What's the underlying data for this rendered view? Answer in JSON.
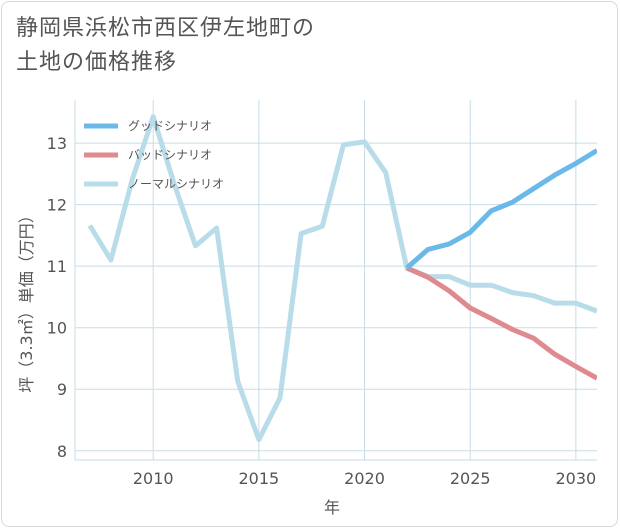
{
  "title": {
    "line1": "静岡県浜松市西区伊左地町の",
    "line2": "土地の価格推移"
  },
  "colors": {
    "good": "#6ab9e8",
    "bad": "#de8a8f",
    "normal": "#b9dcea",
    "grid": "#c9dbe6",
    "text": "#555555"
  },
  "chart_data": {
    "type": "line",
    "title": "静岡県浜松市西区伊左地町の土地の価格推移",
    "xlabel": "年",
    "ylabel": "坪（3.3㎡）単価（万円）",
    "xlim": [
      2006.3,
      2031
    ],
    "ylim": [
      7.85,
      13.7
    ],
    "x_ticks": [
      2010,
      2015,
      2020,
      2025,
      2030
    ],
    "y_ticks": [
      8,
      9,
      10,
      11,
      12,
      13
    ],
    "legend_position": "top-left",
    "series": [
      {
        "name": "グッドシナリオ",
        "color": "#6ab9e8",
        "x": [
          2022,
          2023,
          2024,
          2025,
          2026,
          2027,
          2028,
          2029,
          2030,
          2031
        ],
        "values": [
          10.97,
          11.27,
          11.36,
          11.55,
          11.9,
          12.04,
          12.26,
          12.48,
          12.67,
          12.88
        ]
      },
      {
        "name": "バッドシナリオ",
        "color": "#de8a8f",
        "x": [
          2022,
          2023,
          2024,
          2025,
          2026,
          2027,
          2028,
          2029,
          2030,
          2031
        ],
        "values": [
          10.97,
          10.82,
          10.6,
          10.32,
          10.15,
          9.97,
          9.83,
          9.57,
          9.37,
          9.18
        ]
      },
      {
        "name": "ノーマルシナリオ",
        "color": "#b9dcea",
        "x": [
          2007,
          2008,
          2009,
          2010,
          2011,
          2012,
          2013,
          2014,
          2015,
          2016,
          2017,
          2018,
          2019,
          2020,
          2021,
          2022,
          2023,
          2024,
          2025,
          2026,
          2027,
          2028,
          2029,
          2030,
          2031
        ],
        "values": [
          11.66,
          11.1,
          12.4,
          13.43,
          12.33,
          11.33,
          11.62,
          9.13,
          8.18,
          8.86,
          11.53,
          11.65,
          12.97,
          13.02,
          12.52,
          10.97,
          10.83,
          10.83,
          10.69,
          10.69,
          10.57,
          10.52,
          10.4,
          10.4,
          10.27
        ]
      }
    ]
  }
}
